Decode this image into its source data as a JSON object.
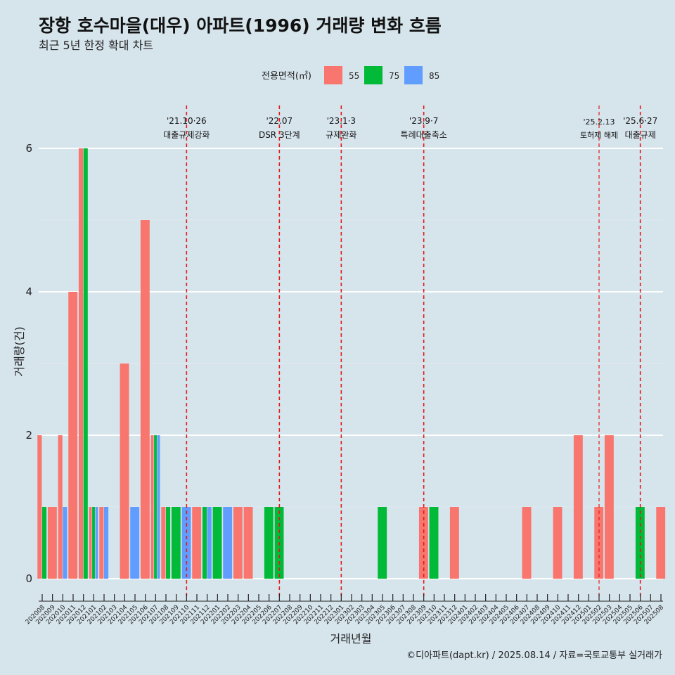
{
  "chart_data": {
    "type": "bar",
    "title": "장항 호수마을(대우) 아파트(1996) 거래량 변화 흐름",
    "subtitle": "최근 5년 한정 확대 차트",
    "xlabel": "거래년월",
    "ylabel": "거래량(건)",
    "ylim": [
      0,
      6.8
    ],
    "yticks": [
      0,
      2,
      4,
      6
    ],
    "grid": true,
    "legend": {
      "title": "전용면적(㎡)",
      "position": "top"
    },
    "caption": "©디아파트(dapt.kr) / 2025.08.14 / 자료=국토교통부 실거래가",
    "categories": [
      "202008",
      "202009",
      "202010",
      "202011",
      "202012",
      "202101",
      "202102",
      "202103",
      "202104",
      "202105",
      "202106",
      "202107",
      "202108",
      "202109",
      "202110",
      "202111",
      "202112",
      "202201",
      "202202",
      "202203",
      "202204",
      "202205",
      "202206",
      "202207",
      "202208",
      "202209",
      "202210",
      "202211",
      "202212",
      "202301",
      "202302",
      "202303",
      "202304",
      "202305",
      "202306",
      "202307",
      "202308",
      "202309",
      "202310",
      "202311",
      "202312",
      "202401",
      "202402",
      "202403",
      "202404",
      "202405",
      "202406",
      "202407",
      "202408",
      "202409",
      "202410",
      "202411",
      "202412",
      "202501",
      "202502",
      "202503",
      "202504",
      "202505",
      "202506",
      "202507",
      "202508"
    ],
    "series": [
      {
        "name": "55",
        "color": "#f8766d",
        "values": [
          2,
          1,
          2,
          4,
          6,
          1,
          1,
          0,
          3,
          0,
          5,
          2,
          1,
          0,
          0,
          1,
          0,
          0,
          0,
          1,
          1,
          0,
          0,
          0,
          0,
          0,
          0,
          0,
          0,
          0,
          0,
          0,
          0,
          0,
          0,
          0,
          0,
          1,
          0,
          0,
          1,
          0,
          0,
          0,
          0,
          0,
          0,
          1,
          0,
          0,
          1,
          0,
          2,
          0,
          1,
          2,
          0,
          0,
          0,
          0,
          1
        ]
      },
      {
        "name": "75",
        "color": "#00ba38",
        "values": [
          1,
          0,
          0,
          0,
          6,
          1,
          0,
          0,
          0,
          0,
          0,
          2,
          1,
          1,
          0,
          0,
          1,
          1,
          0,
          0,
          0,
          0,
          1,
          1,
          0,
          0,
          0,
          0,
          0,
          0,
          0,
          0,
          0,
          1,
          0,
          0,
          0,
          0,
          1,
          0,
          0,
          0,
          0,
          0,
          0,
          0,
          0,
          0,
          0,
          0,
          0,
          0,
          0,
          0,
          0,
          0,
          0,
          0,
          1,
          0,
          0
        ]
      },
      {
        "name": "85",
        "color": "#619cff",
        "values": [
          0,
          0,
          1,
          0,
          0,
          1,
          1,
          0,
          0,
          1,
          0,
          2,
          0,
          0,
          1,
          0,
          1,
          0,
          1,
          0,
          0,
          0,
          0,
          0,
          0,
          0,
          0,
          0,
          0,
          0,
          0,
          0,
          0,
          0,
          0,
          0,
          0,
          0,
          0,
          0,
          0,
          0,
          0,
          0,
          0,
          0,
          0,
          0,
          0,
          0,
          0,
          0,
          0,
          0,
          0,
          0,
          0,
          0,
          0,
          0,
          0
        ]
      }
    ],
    "events": [
      {
        "month": "202110",
        "date": "'21.10·26",
        "label": "대출규제강화",
        "color": "#e41a1c",
        "small": false
      },
      {
        "month": "202207",
        "date": "'22.07",
        "label": "DSR 3단계",
        "color": "#e41a1c",
        "small": false
      },
      {
        "month": "202301",
        "date": "'23.1·3",
        "label": "규제완화",
        "color": "#e41a1c",
        "small": false
      },
      {
        "month": "202309",
        "date": "'23.9·7",
        "label": "특례대출축소",
        "color": "#e41a1c",
        "small": false
      },
      {
        "month": "202502",
        "date": "'25.2.13",
        "label": "토허제 해제",
        "color": "#e41a1c",
        "small": true
      },
      {
        "month": "202506",
        "date": "'25.6·27",
        "label": "대출규제",
        "color": "#e41a1c",
        "small": false
      }
    ]
  }
}
